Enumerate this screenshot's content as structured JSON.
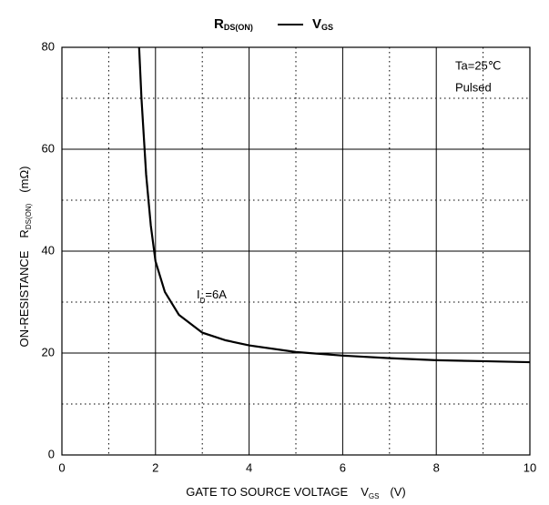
{
  "chart_data": {
    "type": "line",
    "title": {
      "left": "R",
      "left_sub": "DS(ON)",
      "right": "V",
      "right_sub": "GS"
    },
    "xlabel": {
      "text": "GATE TO SOURCE VOLTAGE",
      "symbol": "V",
      "sub": "GS",
      "unit": "(V)"
    },
    "ylabel": {
      "text": "ON-RESISTANCE",
      "symbol": "R",
      "sub": "DS(ON)",
      "unit": "(mΩ)"
    },
    "annotations": {
      "condition": "Ta=25℃",
      "mode": "Pulsed",
      "curve_symbol": "I",
      "curve_sub": "D",
      "curve_value": "=6A"
    },
    "xlim": [
      0,
      10
    ],
    "ylim": [
      0,
      80
    ],
    "xticks": [
      0,
      2,
      4,
      6,
      8,
      10
    ],
    "yticks": [
      0,
      20,
      40,
      60,
      80
    ],
    "xminorticks": [
      1,
      3,
      5,
      7,
      9
    ],
    "yminorticks": [
      10,
      30,
      50,
      70
    ],
    "grid": true,
    "series": [
      {
        "color": "#000000",
        "x": [
          1.65,
          1.7,
          1.8,
          1.9,
          2.0,
          2.2,
          2.5,
          3.0,
          3.5,
          4.0,
          5.0,
          6.0,
          7.0,
          8.0,
          9.0,
          10.0
        ],
        "values": [
          80,
          70,
          55,
          45,
          38,
          32,
          27.5,
          24,
          22.5,
          21.5,
          20.2,
          19.5,
          19,
          18.6,
          18.4,
          18.2
        ]
      }
    ]
  }
}
